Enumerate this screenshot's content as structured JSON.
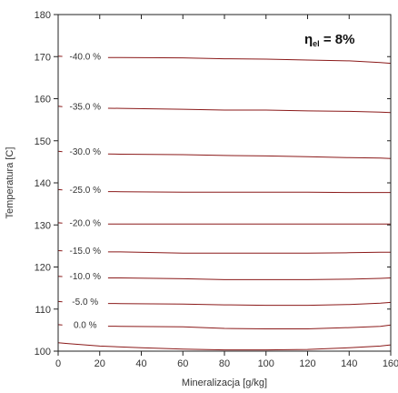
{
  "chart_data": {
    "type": "line",
    "subtype": "contour",
    "title": "",
    "xlabel": "Mineralizacja [g/kg]",
    "ylabel": "Temperatura [C]",
    "xlim": [
      0,
      160
    ],
    "ylim": [
      100,
      180
    ],
    "xticks": [
      0,
      20,
      40,
      60,
      80,
      100,
      120,
      140,
      160
    ],
    "yticks": [
      100,
      110,
      120,
      130,
      140,
      150,
      160,
      170,
      180
    ],
    "grid": false,
    "line_color": "#8b1a1a",
    "annotation": {
      "main": "η",
      "sub": "el",
      "rest": " = 8%"
    },
    "series": [
      {
        "label": "-40.0 %",
        "x": [
          0,
          5,
          10,
          30,
          60,
          80,
          100,
          120,
          140,
          155,
          160
        ],
        "y": [
          170.1,
          170.0,
          169.8,
          169.8,
          169.7,
          169.5,
          169.4,
          169.2,
          169.0,
          168.6,
          168.4
        ]
      },
      {
        "label": "-35.0 %",
        "x": [
          0,
          5,
          10,
          30,
          60,
          80,
          100,
          120,
          140,
          155,
          160
        ],
        "y": [
          158.2,
          158.0,
          157.8,
          157.7,
          157.5,
          157.3,
          157.3,
          157.1,
          157.0,
          156.8,
          156.7
        ]
      },
      {
        "label": "-30.0 %",
        "x": [
          0,
          5,
          10,
          30,
          60,
          80,
          100,
          120,
          140,
          155,
          160
        ],
        "y": [
          147.5,
          147.3,
          147.0,
          146.8,
          146.7,
          146.5,
          146.4,
          146.2,
          146.0,
          145.9,
          145.8
        ]
      },
      {
        "label": "-25.0 %",
        "x": [
          0,
          5,
          10,
          30,
          60,
          80,
          100,
          120,
          140,
          155,
          160
        ],
        "y": [
          138.4,
          138.2,
          138.0,
          137.9,
          137.8,
          137.8,
          137.8,
          137.8,
          137.7,
          137.7,
          137.7
        ]
      },
      {
        "label": "-20.0 %",
        "x": [
          0,
          5,
          10,
          30,
          60,
          80,
          100,
          120,
          140,
          155,
          160
        ],
        "y": [
          130.5,
          130.3,
          130.2,
          130.2,
          130.2,
          130.2,
          130.2,
          130.2,
          130.2,
          130.2,
          130.2
        ]
      },
      {
        "label": "-15.0 %",
        "x": [
          0,
          5,
          10,
          30,
          60,
          80,
          100,
          120,
          140,
          155,
          160
        ],
        "y": [
          123.9,
          123.7,
          123.6,
          123.6,
          123.3,
          123.3,
          123.3,
          123.3,
          123.4,
          123.5,
          123.5
        ]
      },
      {
        "label": "-10.0 %",
        "x": [
          0,
          5,
          10,
          30,
          60,
          80,
          100,
          120,
          140,
          155,
          160
        ],
        "y": [
          117.8,
          117.6,
          117.4,
          117.4,
          117.2,
          117.0,
          117.0,
          117.0,
          117.1,
          117.3,
          117.4
        ]
      },
      {
        "label": "-5.0 %",
        "x": [
          0,
          5,
          10,
          30,
          60,
          80,
          100,
          120,
          140,
          155,
          160
        ],
        "y": [
          111.8,
          111.6,
          111.4,
          111.3,
          111.2,
          111.0,
          110.9,
          110.9,
          111.1,
          111.4,
          111.6
        ]
      },
      {
        "label": "0.0 %",
        "x": [
          0,
          5,
          10,
          30,
          60,
          80,
          100,
          120,
          140,
          155,
          160
        ],
        "y": [
          106.3,
          106.1,
          106.0,
          105.9,
          105.8,
          105.4,
          105.3,
          105.3,
          105.6,
          105.9,
          106.2
        ]
      },
      {
        "label": "",
        "x": [
          0,
          5,
          10,
          20,
          40,
          60,
          80,
          100,
          120,
          140,
          155,
          160
        ],
        "y": [
          102.0,
          101.8,
          101.6,
          101.2,
          100.8,
          100.5,
          100.3,
          100.3,
          100.4,
          100.8,
          101.2,
          101.5
        ]
      }
    ]
  }
}
